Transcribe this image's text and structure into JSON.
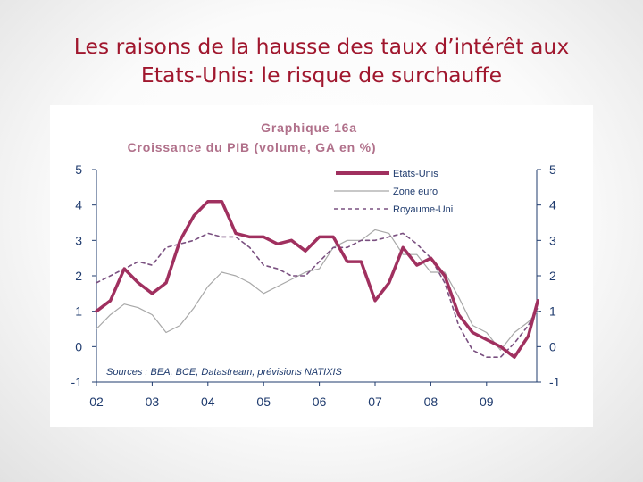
{
  "slide": {
    "title_line1": "Les raisons de la hausse des taux d’intérêt aux",
    "title_line2": "Etats-Unis: le risque de surchauffe"
  },
  "chart_data": {
    "type": "line",
    "title": "Graphique 16a",
    "subtitle": "Croissance du PIB (volume, GA en %)",
    "source": "Sources : BEA, BCE, Datastream, prévisions NATIXIS",
    "ylim": [
      -1,
      5
    ],
    "yticks": [
      5,
      4,
      3,
      2,
      1,
      0,
      -1
    ],
    "xticks": [
      "02",
      "03",
      "04",
      "05",
      "06",
      "07",
      "08",
      "09"
    ],
    "x_start_year": 2002,
    "x_end_year": 2009.75,
    "grid": false,
    "legend_position": "top-right",
    "series": [
      {
        "name": "Etats-Unis",
        "color": "#a0305f",
        "style": "thick",
        "points": [
          [
            2002.0,
            1.0
          ],
          [
            2002.25,
            1.3
          ],
          [
            2002.5,
            2.2
          ],
          [
            2002.75,
            1.8
          ],
          [
            2003.0,
            1.5
          ],
          [
            2003.25,
            1.8
          ],
          [
            2003.5,
            3.0
          ],
          [
            2003.75,
            3.7
          ],
          [
            2004.0,
            4.1
          ],
          [
            2004.25,
            4.1
          ],
          [
            2004.5,
            3.2
          ],
          [
            2004.75,
            3.1
          ],
          [
            2005.0,
            3.1
          ],
          [
            2005.25,
            2.9
          ],
          [
            2005.5,
            3.0
          ],
          [
            2005.75,
            2.7
          ],
          [
            2006.0,
            3.1
          ],
          [
            2006.25,
            3.1
          ],
          [
            2006.5,
            2.4
          ],
          [
            2006.75,
            2.4
          ],
          [
            2007.0,
            1.3
          ],
          [
            2007.25,
            1.8
          ],
          [
            2007.5,
            2.8
          ],
          [
            2007.75,
            2.3
          ],
          [
            2008.0,
            2.5
          ],
          [
            2008.25,
            2.0
          ],
          [
            2008.5,
            0.9
          ],
          [
            2008.75,
            0.4
          ],
          [
            2009.0,
            0.2
          ],
          [
            2009.25,
            0.0
          ],
          [
            2009.5,
            -0.3
          ],
          [
            2009.75,
            0.3
          ],
          [
            2009.92,
            1.3
          ]
        ]
      },
      {
        "name": "Zone euro",
        "color": "#a8a8a8",
        "style": "thin",
        "points": [
          [
            2002.0,
            0.5
          ],
          [
            2002.25,
            0.9
          ],
          [
            2002.5,
            1.2
          ],
          [
            2002.75,
            1.1
          ],
          [
            2003.0,
            0.9
          ],
          [
            2003.25,
            0.4
          ],
          [
            2003.5,
            0.6
          ],
          [
            2003.75,
            1.1
          ],
          [
            2004.0,
            1.7
          ],
          [
            2004.25,
            2.1
          ],
          [
            2004.5,
            2.0
          ],
          [
            2004.75,
            1.8
          ],
          [
            2005.0,
            1.5
          ],
          [
            2005.25,
            1.7
          ],
          [
            2005.5,
            1.9
          ],
          [
            2005.75,
            2.1
          ],
          [
            2006.0,
            2.2
          ],
          [
            2006.25,
            2.8
          ],
          [
            2006.5,
            3.0
          ],
          [
            2006.75,
            3.0
          ],
          [
            2007.0,
            3.3
          ],
          [
            2007.25,
            3.2
          ],
          [
            2007.5,
            2.6
          ],
          [
            2007.75,
            2.6
          ],
          [
            2008.0,
            2.1
          ],
          [
            2008.25,
            2.1
          ],
          [
            2008.5,
            1.4
          ],
          [
            2008.75,
            0.6
          ],
          [
            2009.0,
            0.4
          ],
          [
            2009.25,
            -0.1
          ],
          [
            2009.5,
            0.4
          ],
          [
            2009.75,
            0.7
          ],
          [
            2009.92,
            1.0
          ]
        ]
      },
      {
        "name": "Royaume-Uni",
        "color": "#7a5080",
        "style": "dashed",
        "points": [
          [
            2002.0,
            1.8
          ],
          [
            2002.25,
            2.0
          ],
          [
            2002.5,
            2.2
          ],
          [
            2002.75,
            2.4
          ],
          [
            2003.0,
            2.3
          ],
          [
            2003.25,
            2.8
          ],
          [
            2003.5,
            2.9
          ],
          [
            2003.75,
            3.0
          ],
          [
            2004.0,
            3.2
          ],
          [
            2004.25,
            3.1
          ],
          [
            2004.5,
            3.1
          ],
          [
            2004.75,
            2.8
          ],
          [
            2005.0,
            2.3
          ],
          [
            2005.25,
            2.2
          ],
          [
            2005.5,
            2.0
          ],
          [
            2005.75,
            2.0
          ],
          [
            2006.0,
            2.4
          ],
          [
            2006.25,
            2.8
          ],
          [
            2006.5,
            2.8
          ],
          [
            2006.75,
            3.0
          ],
          [
            2007.0,
            3.0
          ],
          [
            2007.25,
            3.1
          ],
          [
            2007.5,
            3.2
          ],
          [
            2007.75,
            2.9
          ],
          [
            2008.0,
            2.5
          ],
          [
            2008.25,
            1.8
          ],
          [
            2008.5,
            0.6
          ],
          [
            2008.75,
            -0.1
          ],
          [
            2009.0,
            -0.3
          ],
          [
            2009.25,
            -0.3
          ],
          [
            2009.5,
            0.1
          ],
          [
            2009.75,
            0.6
          ],
          [
            2009.92,
            1.1
          ]
        ]
      }
    ]
  }
}
